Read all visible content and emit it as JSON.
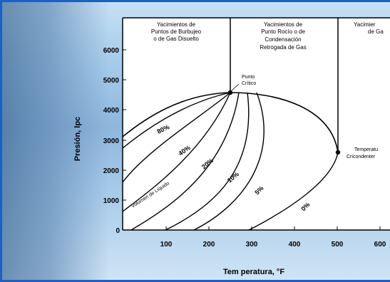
{
  "regions": [
    {
      "lines": [
        "Yacimientos de",
        "Puntos de Burbujeo",
        "o de Gas Disuelto"
      ]
    },
    {
      "lines": [
        "Yacimientos de",
        "Punto Rocío o de",
        "Condensación",
        "Retrogada de Gas"
      ]
    },
    {
      "lines": [
        "Yacimier",
        "de Ga"
      ]
    }
  ],
  "axes": {
    "y_label": "Presión, lpc",
    "x_label": "Tem peratura, °F",
    "y_ticks": [
      "0",
      "1000",
      "2000",
      "3000",
      "4000",
      "5000",
      "6000"
    ],
    "x_ticks": [
      "100",
      "200",
      "300",
      "400",
      "500",
      "600"
    ]
  },
  "points": {
    "critical": [
      "Punto",
      "Crítico"
    ],
    "cricondentherm": [
      "Temperatu",
      "Cricondenter"
    ]
  },
  "curve_labels": [
    "80%",
    "40%",
    "20%",
    "10%",
    "5%",
    "0%"
  ],
  "bubble_line_label": "Volumen de Líquido"
}
